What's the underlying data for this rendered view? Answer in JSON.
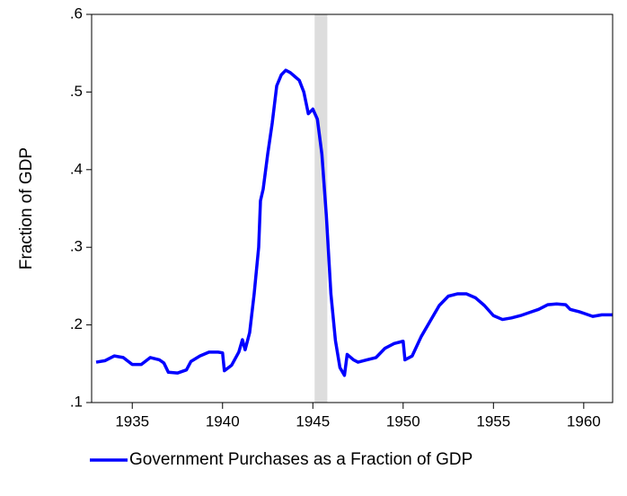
{
  "chart_data": {
    "type": "line",
    "ylabel": "Fraction of GDP",
    "x": [
      1933.0,
      1933.5,
      1934.0,
      1934.5,
      1935.0,
      1935.5,
      1936.0,
      1936.5,
      1936.75,
      1937.0,
      1937.5,
      1938.0,
      1938.25,
      1938.75,
      1939.25,
      1939.75,
      1940.0,
      1940.1,
      1940.5,
      1940.9,
      1941.1,
      1941.25,
      1941.5,
      1941.75,
      1942.0,
      1942.1,
      1942.25,
      1942.5,
      1942.75,
      1943.0,
      1943.25,
      1943.5,
      1943.75,
      1944.0,
      1944.25,
      1944.5,
      1944.75,
      1945.0,
      1945.25,
      1945.5,
      1945.75,
      1946.0,
      1946.25,
      1946.5,
      1946.75,
      1946.9,
      1947.25,
      1947.5,
      1948.0,
      1948.5,
      1949.0,
      1949.5,
      1950.0,
      1950.1,
      1950.5,
      1951.0,
      1951.5,
      1952.0,
      1952.5,
      1953.0,
      1953.5,
      1954.0,
      1954.5,
      1955.0,
      1955.5,
      1956.0,
      1956.5,
      1957.0,
      1957.5,
      1958.0,
      1958.5,
      1959.0,
      1959.25,
      1959.75,
      1960.0,
      1960.5,
      1961.0,
      1961.6
    ],
    "series": [
      {
        "name": "Government Purchases as a Fraction of GDP",
        "color": "#0000ff",
        "values": [
          0.152,
          0.154,
          0.16,
          0.158,
          0.149,
          0.149,
          0.158,
          0.155,
          0.151,
          0.139,
          0.138,
          0.142,
          0.153,
          0.16,
          0.165,
          0.165,
          0.164,
          0.141,
          0.148,
          0.165,
          0.181,
          0.168,
          0.19,
          0.24,
          0.3,
          0.36,
          0.375,
          0.42,
          0.46,
          0.508,
          0.522,
          0.528,
          0.525,
          0.52,
          0.515,
          0.5,
          0.472,
          0.478,
          0.465,
          0.42,
          0.34,
          0.24,
          0.18,
          0.145,
          0.135,
          0.162,
          0.155,
          0.152,
          0.155,
          0.158,
          0.17,
          0.176,
          0.179,
          0.155,
          0.16,
          0.185,
          0.205,
          0.225,
          0.237,
          0.24,
          0.24,
          0.235,
          0.225,
          0.212,
          0.207,
          0.209,
          0.212,
          0.216,
          0.22,
          0.226,
          0.227,
          0.226,
          0.22,
          0.217,
          0.215,
          0.211,
          0.213,
          0.213
        ]
      }
    ],
    "shade": [
      1945.1,
      1945.8
    ],
    "shade_color": "#dddddd",
    "xlim": [
      1932.75,
      1961.6
    ],
    "xticks": [
      1935,
      1940,
      1945,
      1950,
      1955,
      1960
    ],
    "ylim": [
      0.1,
      0.6
    ],
    "yticks": [
      {
        "value": 0.1,
        "label": ".1"
      },
      {
        "value": 0.2,
        "label": ".2"
      },
      {
        "value": 0.3,
        "label": ".3"
      },
      {
        "value": 0.4,
        "label": ".4"
      },
      {
        "value": 0.5,
        "label": ".5"
      },
      {
        "value": 0.6,
        "label": ".6"
      }
    ]
  }
}
